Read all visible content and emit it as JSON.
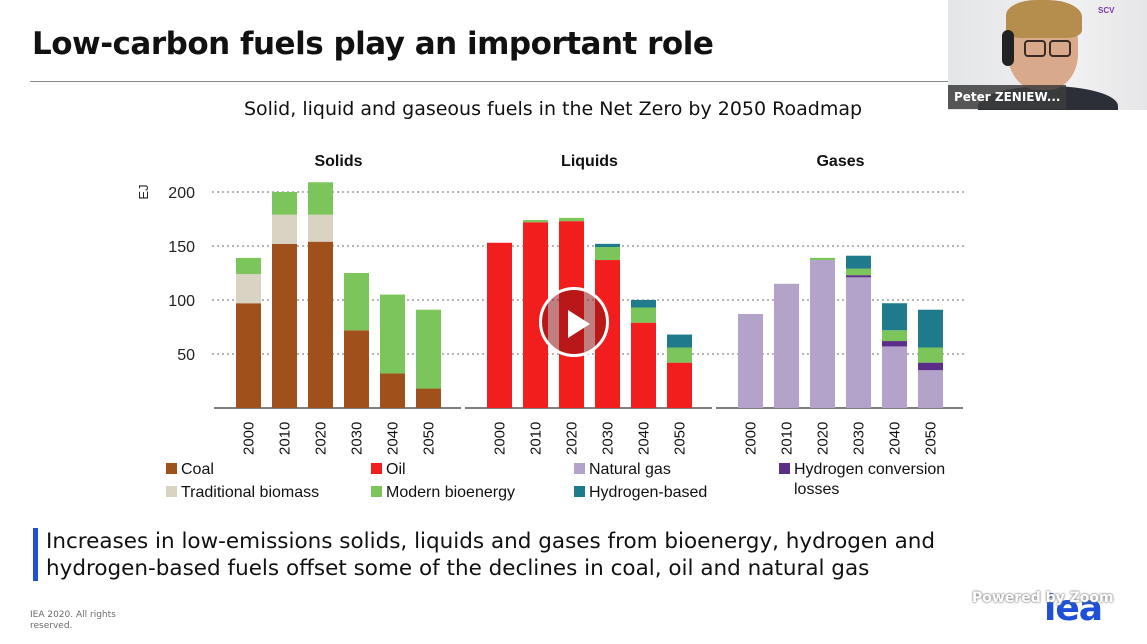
{
  "slide": {
    "title": "Low-carbon fuels play an important role",
    "callout": "Increases in low-emissions solids, liquids and gases from bioenergy, hydrogen and hydrogen-based fuels offset some of the declines in coal, oil and natural gas",
    "copyright": "IEA 2020. All rights reserved.",
    "logo_text": "iea",
    "accent_color": "#1f4fd6"
  },
  "video": {
    "participant_name": "Peter ZENIEW...",
    "powered_by": "Powered by Zoom",
    "camera_badge": "SCV"
  },
  "chart_data": {
    "type": "bar",
    "stacked": true,
    "title": "Solid, liquid and gaseous fuels in the Net Zero by 2050 Roadmap",
    "ylabel": "EJ",
    "ylim": [
      0,
      200
    ],
    "yticks": [
      50,
      100,
      150,
      200
    ],
    "grid": "horizontal-dotted",
    "legend_position": "bottom",
    "categories": [
      "2000",
      "2010",
      "2020",
      "2030",
      "2040",
      "2050"
    ],
    "panels": [
      {
        "name": "Solids",
        "series": [
          {
            "name": "Coal",
            "color": "#a0501a",
            "values": [
              97,
              152,
              154,
              72,
              32,
              18
            ]
          },
          {
            "name": "Traditional biomass",
            "color": "#d9d3c4",
            "values": [
              27,
              27,
              25,
              0,
              0,
              0
            ]
          },
          {
            "name": "Modern bioenergy",
            "color": "#7cc55a",
            "values": [
              15,
              21,
              30,
              53,
              73,
              73
            ]
          }
        ]
      },
      {
        "name": "Liquids",
        "series": [
          {
            "name": "Oil",
            "color": "#f21d1d",
            "values": [
              153,
              172,
              173,
              137,
              79,
              42
            ]
          },
          {
            "name": "Modern bioenergy",
            "color": "#7cc55a",
            "values": [
              0,
              2,
              3,
              12,
              14,
              14
            ]
          },
          {
            "name": "Hydrogen-based",
            "color": "#1f7a8c",
            "values": [
              0,
              0,
              0,
              3,
              7,
              12
            ]
          }
        ]
      },
      {
        "name": "Gases",
        "series": [
          {
            "name": "Natural gas",
            "color": "#b3a2c9",
            "values": [
              87,
              115,
              137,
              121,
              57,
              35
            ]
          },
          {
            "name": "Hydrogen conversion losses",
            "color": "#5b2f88",
            "values": [
              0,
              0,
              0,
              2,
              5,
              7
            ]
          },
          {
            "name": "Modern bioenergy",
            "color": "#7cc55a",
            "values": [
              0,
              0,
              2,
              6,
              10,
              14
            ]
          },
          {
            "name": "Hydrogen-based",
            "color": "#1f7a8c",
            "values": [
              0,
              0,
              0,
              12,
              25,
              35
            ]
          }
        ]
      }
    ],
    "legend": [
      {
        "label": "Coal",
        "color": "#a0501a"
      },
      {
        "label": "Oil",
        "color": "#f21d1d"
      },
      {
        "label": "Natural gas",
        "color": "#b3a2c9"
      },
      {
        "label": "Hydrogen conversion losses",
        "color": "#5b2f88"
      },
      {
        "label": "Traditional biomass",
        "color": "#d9d3c4"
      },
      {
        "label": "Modern bioenergy",
        "color": "#7cc55a"
      },
      {
        "label": "Hydrogen-based",
        "color": "#1f7a8c"
      }
    ]
  }
}
